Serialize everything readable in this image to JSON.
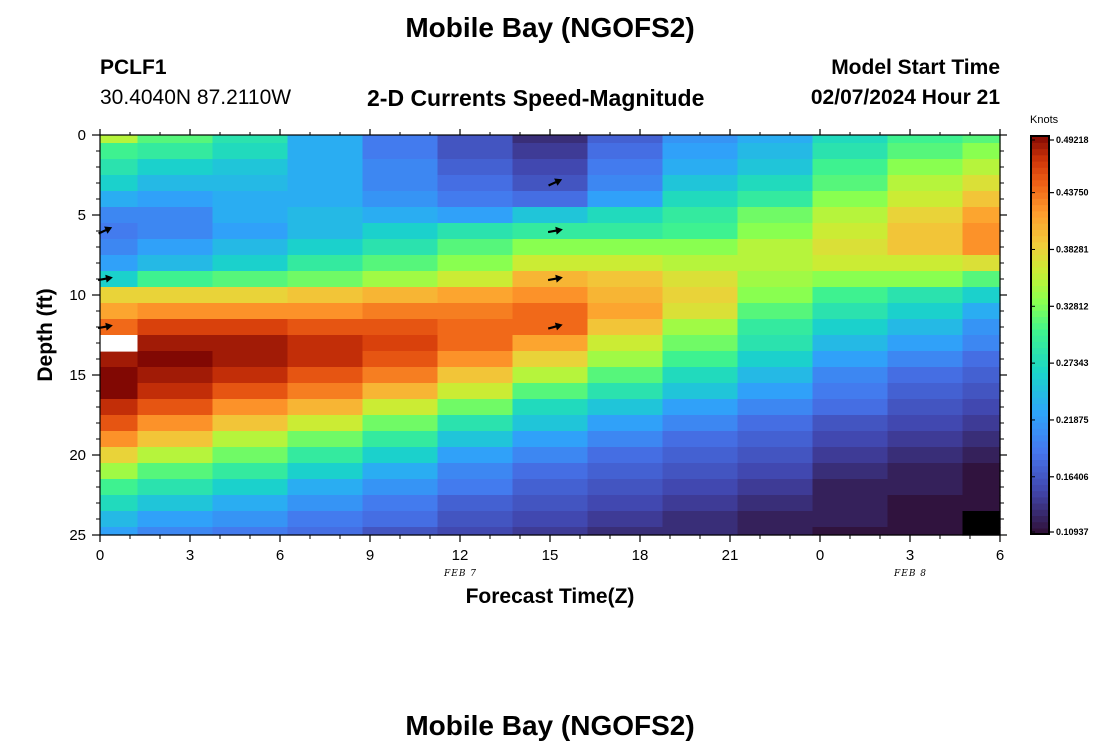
{
  "header": {
    "title": "Mobile Bay (NGOFS2)",
    "station_id": "PCLF1",
    "station_coords": "30.4040N  87.2110W",
    "plot_subtitle": "2-D Currents Speed-Magnitude",
    "model_start_label": "Model Start Time",
    "model_start_value": "02/07/2024 Hour 21"
  },
  "footer": {
    "title_repeat": "Mobile Bay (NGOFS2)"
  },
  "chart_data": {
    "type": "heatmap",
    "title": "2-D Currents Speed-Magnitude",
    "xlabel": "Forecast Time(Z)",
    "ylabel": "Depth (ft)",
    "x_tick_labels": [
      "0",
      "3",
      "6",
      "9",
      "12",
      "15",
      "18",
      "21",
      "0",
      "3",
      "6"
    ],
    "x_ticks_hours": [
      0,
      3,
      6,
      9,
      12,
      15,
      18,
      21,
      24,
      27,
      30
    ],
    "x_range_hours": [
      0,
      30
    ],
    "date_labels": [
      {
        "text": "FEB 7",
        "at_hours": 12
      },
      {
        "text": "FEB 8",
        "at_hours": 27
      }
    ],
    "y_ticks_ft": [
      0,
      5,
      10,
      15,
      20,
      25
    ],
    "y_range_ft": [
      0,
      25
    ],
    "y_reversed": true,
    "colorbar": {
      "title": "Knots",
      "min": 0.109,
      "max": 0.492,
      "tick_labels": [
        "0.49218",
        "0.43750",
        "0.38281",
        "0.32812",
        "0.27343",
        "0.21875",
        "0.16406",
        "0.10937"
      ],
      "tick_values": [
        0.49218,
        0.4375,
        0.38281,
        0.32812,
        0.27343,
        0.21875,
        0.16406,
        0.10937
      ],
      "colormap": "turbo"
    },
    "column_x_edges_hours": [
      0,
      1.25,
      3.75,
      6.25,
      8.75,
      11.25,
      13.75,
      16.25,
      18.75,
      21.25,
      23.75,
      26.25,
      28.75,
      30
    ],
    "depth_levels": 26,
    "speed_knots": [
      [
        0.35,
        0.31,
        0.28,
        0.23,
        0.19,
        0.16,
        0.13,
        0.17,
        0.21,
        0.23,
        0.27,
        0.3,
        0.31
      ],
      [
        0.3,
        0.29,
        0.27,
        0.23,
        0.19,
        0.16,
        0.14,
        0.18,
        0.22,
        0.24,
        0.28,
        0.31,
        0.33
      ],
      [
        0.28,
        0.26,
        0.25,
        0.23,
        0.2,
        0.17,
        0.15,
        0.19,
        0.23,
        0.25,
        0.3,
        0.33,
        0.35
      ],
      [
        0.26,
        0.24,
        0.24,
        0.23,
        0.2,
        0.18,
        0.16,
        0.2,
        0.25,
        0.27,
        0.31,
        0.35,
        0.37
      ],
      [
        0.23,
        0.22,
        0.23,
        0.23,
        0.21,
        0.19,
        0.18,
        0.22,
        0.27,
        0.29,
        0.33,
        0.36,
        0.39
      ],
      [
        0.2,
        0.2,
        0.23,
        0.24,
        0.23,
        0.22,
        0.25,
        0.27,
        0.29,
        0.32,
        0.35,
        0.38,
        0.41
      ],
      [
        0.19,
        0.2,
        0.22,
        0.24,
        0.26,
        0.28,
        0.29,
        0.29,
        0.3,
        0.33,
        0.36,
        0.39,
        0.42
      ],
      [
        0.2,
        0.22,
        0.24,
        0.26,
        0.28,
        0.31,
        0.33,
        0.33,
        0.33,
        0.35,
        0.37,
        0.39,
        0.42
      ],
      [
        0.22,
        0.24,
        0.26,
        0.29,
        0.31,
        0.33,
        0.36,
        0.36,
        0.35,
        0.35,
        0.36,
        0.36,
        0.37
      ],
      [
        0.26,
        0.3,
        0.31,
        0.32,
        0.34,
        0.36,
        0.4,
        0.39,
        0.37,
        0.34,
        0.33,
        0.33,
        0.31
      ],
      [
        0.38,
        0.38,
        0.38,
        0.39,
        0.4,
        0.41,
        0.42,
        0.4,
        0.38,
        0.33,
        0.3,
        0.28,
        0.26
      ],
      [
        0.41,
        0.42,
        0.42,
        0.42,
        0.43,
        0.43,
        0.44,
        0.41,
        0.37,
        0.31,
        0.28,
        0.26,
        0.23
      ],
      [
        0.44,
        0.46,
        0.46,
        0.45,
        0.45,
        0.44,
        0.44,
        0.39,
        0.34,
        0.29,
        0.26,
        0.24,
        0.21
      ],
      [
        0.46,
        0.48,
        0.48,
        0.47,
        0.46,
        0.44,
        0.41,
        0.36,
        0.32,
        0.28,
        0.24,
        0.22,
        0.2
      ],
      [
        0.48,
        0.49,
        0.48,
        0.47,
        0.45,
        0.42,
        0.38,
        0.34,
        0.3,
        0.26,
        0.22,
        0.2,
        0.18
      ],
      [
        0.49,
        0.48,
        0.47,
        0.45,
        0.43,
        0.39,
        0.35,
        0.31,
        0.27,
        0.24,
        0.2,
        0.18,
        0.17
      ],
      [
        0.49,
        0.47,
        0.45,
        0.43,
        0.4,
        0.36,
        0.31,
        0.28,
        0.25,
        0.22,
        0.19,
        0.17,
        0.16
      ],
      [
        0.47,
        0.45,
        0.42,
        0.4,
        0.36,
        0.32,
        0.27,
        0.25,
        0.22,
        0.2,
        0.18,
        0.16,
        0.15
      ],
      [
        0.45,
        0.42,
        0.39,
        0.36,
        0.32,
        0.28,
        0.25,
        0.22,
        0.2,
        0.18,
        0.16,
        0.15,
        0.14
      ],
      [
        0.42,
        0.39,
        0.35,
        0.32,
        0.29,
        0.25,
        0.22,
        0.2,
        0.18,
        0.17,
        0.15,
        0.14,
        0.13
      ],
      [
        0.38,
        0.35,
        0.32,
        0.29,
        0.26,
        0.22,
        0.2,
        0.18,
        0.17,
        0.16,
        0.14,
        0.13,
        0.12
      ],
      [
        0.34,
        0.31,
        0.29,
        0.26,
        0.23,
        0.2,
        0.18,
        0.17,
        0.16,
        0.15,
        0.13,
        0.12,
        0.11
      ],
      [
        0.3,
        0.28,
        0.26,
        0.23,
        0.21,
        0.19,
        0.17,
        0.16,
        0.15,
        0.14,
        0.12,
        0.12,
        0.11
      ],
      [
        0.27,
        0.25,
        0.23,
        0.21,
        0.19,
        0.17,
        0.16,
        0.15,
        0.14,
        0.13,
        0.12,
        0.11,
        0.11
      ],
      [
        0.24,
        0.22,
        0.21,
        0.19,
        0.18,
        0.16,
        0.15,
        0.14,
        0.13,
        0.12,
        0.12,
        0.11,
        0.11
      ],
      [
        0.22,
        0.2,
        0.19,
        0.18,
        0.16,
        0.15,
        0.14,
        0.13,
        0.13,
        0.12,
        0.11,
        0.11,
        0.11
      ]
    ],
    "missing_cells": [
      {
        "depth_index": 13,
        "column_index": 0,
        "color": "#ffffff"
      },
      {
        "depth_index": 24,
        "column_index": 12,
        "color": "#000000"
      },
      {
        "depth_index": 25,
        "column_index": 12,
        "color": "#000000"
      }
    ],
    "direction_arrows": [
      {
        "hours": 0,
        "depth_ft": 6,
        "angle_deg": -25
      },
      {
        "hours": 0,
        "depth_ft": 9,
        "angle_deg": -10
      },
      {
        "hours": 0,
        "depth_ft": 12,
        "angle_deg": -10
      },
      {
        "hours": 15,
        "depth_ft": 3,
        "angle_deg": -25
      },
      {
        "hours": 15,
        "depth_ft": 6,
        "angle_deg": -10
      },
      {
        "hours": 15,
        "depth_ft": 9,
        "angle_deg": -10
      },
      {
        "hours": 15,
        "depth_ft": 12,
        "angle_deg": -15
      }
    ]
  }
}
